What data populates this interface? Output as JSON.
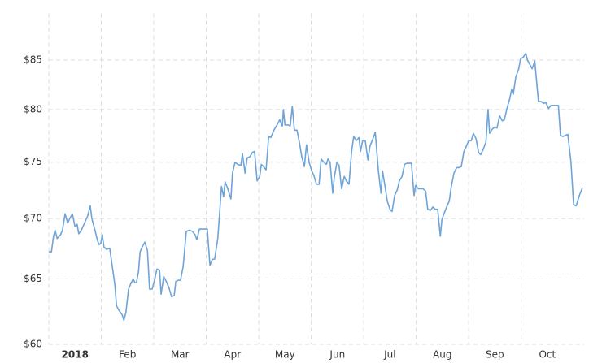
{
  "chart_data": {
    "type": "line",
    "x": [
      0.0,
      0.05,
      0.09,
      0.12,
      0.16,
      0.22,
      0.26,
      0.31,
      0.36,
      0.4,
      0.45,
      0.5,
      0.54,
      0.57,
      0.62,
      0.68,
      0.74,
      0.79,
      0.82,
      0.88,
      0.93,
      0.96,
      0.99,
      1.02,
      1.05,
      1.1,
      1.16,
      1.21,
      1.26,
      1.29,
      1.33,
      1.4,
      1.43,
      1.47,
      1.52,
      1.57,
      1.61,
      1.64,
      1.67,
      1.71,
      1.74,
      1.78,
      1.83,
      1.88,
      1.92,
      1.97,
      2.02,
      2.06,
      2.11,
      2.14,
      2.19,
      2.25,
      2.29,
      2.34,
      2.39,
      2.42,
      2.47,
      2.51,
      2.56,
      2.62,
      2.68,
      2.74,
      2.79,
      2.82,
      2.87,
      2.91,
      2.96,
      3.02,
      3.07,
      3.12,
      3.16,
      3.22,
      3.26,
      3.29,
      3.33,
      3.36,
      3.41,
      3.47,
      3.5,
      3.55,
      3.6,
      3.66,
      3.69,
      3.74,
      3.78,
      3.83,
      3.88,
      3.92,
      3.97,
      4.02,
      4.05,
      4.09,
      4.14,
      4.19,
      4.23,
      4.29,
      4.36,
      4.4,
      4.45,
      4.47,
      4.5,
      4.56,
      4.6,
      4.64,
      4.68,
      4.73,
      4.78,
      4.82,
      4.87,
      4.91,
      4.96,
      5.01,
      5.05,
      5.1,
      5.15,
      5.19,
      5.24,
      5.29,
      5.32,
      5.36,
      5.41,
      5.44,
      5.49,
      5.53,
      5.58,
      5.63,
      5.67,
      5.72,
      5.77,
      5.81,
      5.86,
      5.91,
      5.94,
      5.98,
      6.03,
      6.08,
      6.12,
      6.17,
      6.22,
      6.25,
      6.28,
      6.33,
      6.36,
      6.4,
      6.45,
      6.5,
      6.54,
      6.59,
      6.64,
      6.68,
      6.73,
      6.78,
      6.82,
      6.87,
      6.91,
      6.96,
      6.99,
      7.04,
      7.09,
      7.13,
      7.18,
      7.22,
      7.27,
      7.32,
      7.36,
      7.41,
      7.46,
      7.49,
      7.53,
      7.58,
      7.63,
      7.67,
      7.72,
      7.77,
      7.81,
      7.86,
      7.91,
      7.95,
      8.0,
      8.05,
      8.09,
      8.14,
      8.19,
      8.23,
      8.28,
      8.33,
      8.37,
      8.4,
      8.45,
      8.5,
      8.54,
      8.59,
      8.64,
      8.68,
      8.73,
      8.78,
      8.82,
      8.85,
      8.9,
      8.95,
      8.99,
      9.04,
      9.09,
      9.12,
      9.16,
      9.21,
      9.26,
      9.3,
      9.33,
      9.38,
      9.43,
      9.47,
      9.52,
      9.57,
      9.61,
      9.66,
      9.71,
      9.75,
      9.8,
      9.84,
      9.89,
      9.95,
      10.0,
      10.05,
      10.11,
      10.17
    ],
    "series": [
      {
        "color": "#6ea4d8",
        "values": [
          67.2,
          67.2,
          68.5,
          69.0,
          68.3,
          68.6,
          69.0,
          70.4,
          69.6,
          70.0,
          70.4,
          69.3,
          69.5,
          68.7,
          69.0,
          69.6,
          70.2,
          71.1,
          70.0,
          69.0,
          68.1,
          67.8,
          67.9,
          68.6,
          67.6,
          67.4,
          67.5,
          66.0,
          64.5,
          62.9,
          62.6,
          62.2,
          61.8,
          62.4,
          64.2,
          64.7,
          65.0,
          64.7,
          64.7,
          65.6,
          67.2,
          67.6,
          68.0,
          67.3,
          64.2,
          64.2,
          65.0,
          65.8,
          65.7,
          63.8,
          65.2,
          64.7,
          64.3,
          63.6,
          63.7,
          64.8,
          64.9,
          64.9,
          66.0,
          68.9,
          69.0,
          68.9,
          68.6,
          68.2,
          69.1,
          69.1,
          69.1,
          69.1,
          66.1,
          66.6,
          66.6,
          68.3,
          70.8,
          72.8,
          71.9,
          73.2,
          72.6,
          71.7,
          74.0,
          75.0,
          74.8,
          74.7,
          75.8,
          74.0,
          75.4,
          75.5,
          75.9,
          76.0,
          73.3,
          73.7,
          74.8,
          74.6,
          74.3,
          77.4,
          77.3,
          78.0,
          78.6,
          79.0,
          78.4,
          80.0,
          78.5,
          78.5,
          78.4,
          80.3,
          78.0,
          78.0,
          76.7,
          75.5,
          74.6,
          76.6,
          75.0,
          74.2,
          73.8,
          73.0,
          73.0,
          75.3,
          75.0,
          74.8,
          75.3,
          75.0,
          72.2,
          73.6,
          75.0,
          74.7,
          72.6,
          73.7,
          73.3,
          73.0,
          76.0,
          77.4,
          77.0,
          77.3,
          76.0,
          77.0,
          77.0,
          75.2,
          76.5,
          77.1,
          77.8,
          76.0,
          74.2,
          72.2,
          74.2,
          73.0,
          71.5,
          70.8,
          70.6,
          72.0,
          72.5,
          73.3,
          73.7,
          74.8,
          74.9,
          74.9,
          74.9,
          72.0,
          72.9,
          72.6,
          72.6,
          72.6,
          72.4,
          70.8,
          70.7,
          71.0,
          70.8,
          70.8,
          68.5,
          69.9,
          70.4,
          71.0,
          71.5,
          72.8,
          74.0,
          74.5,
          74.5,
          74.6,
          76.0,
          76.4,
          77.0,
          77.0,
          77.7,
          77.2,
          75.9,
          75.7,
          76.2,
          76.9,
          80.0,
          77.7,
          78.1,
          78.3,
          78.2,
          79.4,
          78.9,
          79.0,
          80.1,
          81.0,
          82.0,
          81.5,
          83.3,
          84.0,
          85.1,
          85.3,
          85.7,
          85.0,
          84.6,
          84.1,
          84.9,
          82.5,
          80.8,
          80.8,
          80.6,
          80.7,
          80.1,
          80.4,
          80.4,
          80.4,
          80.4,
          77.5,
          77.4,
          77.5,
          77.6,
          75.0,
          71.2,
          71.1,
          72.0,
          72.7
        ]
      }
    ],
    "xlim": [
      0,
      10.2
    ],
    "xticks": [
      {
        "value": 0,
        "label": "2018"
      },
      {
        "value": 1,
        "label": "Feb"
      },
      {
        "value": 2,
        "label": "Mar"
      },
      {
        "value": 3,
        "label": "Apr"
      },
      {
        "value": 4,
        "label": "May"
      },
      {
        "value": 5,
        "label": "Jun"
      },
      {
        "value": 6,
        "label": "Jul"
      },
      {
        "value": 7,
        "label": "Aug"
      },
      {
        "value": 8,
        "label": "Sep"
      },
      {
        "value": 9,
        "label": "Oct"
      }
    ],
    "ylim": [
      60,
      90
    ],
    "log_scale": true,
    "yticks": [
      {
        "value": 60,
        "label": "$60"
      },
      {
        "value": 65,
        "label": "$65"
      },
      {
        "value": 70,
        "label": "$70"
      },
      {
        "value": 75,
        "label": "$75"
      },
      {
        "value": 80,
        "label": "$80"
      },
      {
        "value": 85,
        "label": "$85"
      }
    ],
    "grid": true
  }
}
